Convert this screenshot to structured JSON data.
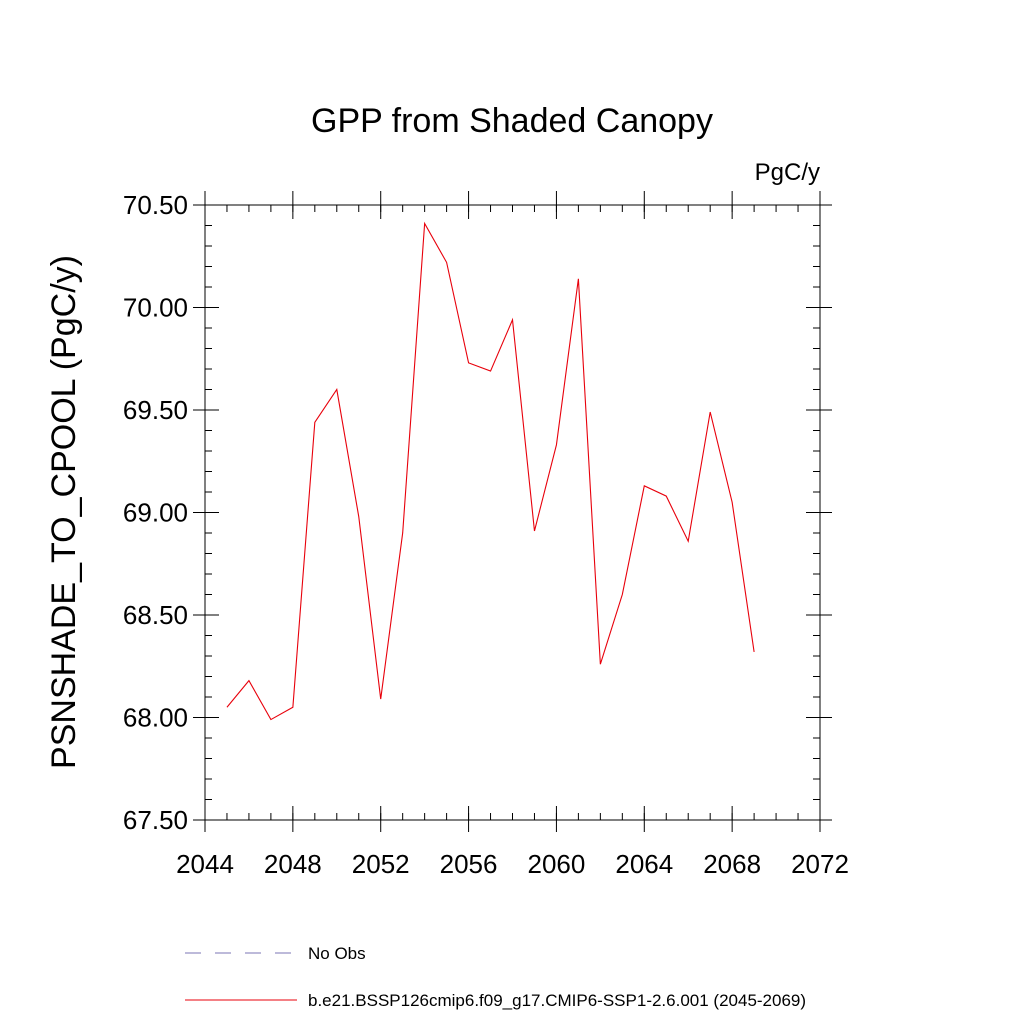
{
  "chart_data": {
    "type": "line",
    "title": "GPP from Shaded Canopy",
    "units_label": "PgC/y",
    "ylabel": "PSNSHADE_TO_CPOOL  (PgC/y)",
    "xlabel": "",
    "xlim": [
      2044,
      2072
    ],
    "ylim": [
      67.5,
      70.5
    ],
    "x_ticks": [
      2044,
      2048,
      2052,
      2056,
      2060,
      2064,
      2068,
      2072
    ],
    "x_tick_labels": [
      "2044",
      "2048",
      "2052",
      "2056",
      "2060",
      "2064",
      "2068",
      "2072"
    ],
    "y_ticks": [
      67.5,
      68.0,
      68.5,
      69.0,
      69.5,
      70.0,
      70.5
    ],
    "y_tick_labels": [
      "67.50",
      "68.00",
      "68.50",
      "69.00",
      "69.50",
      "70.00",
      "70.50"
    ],
    "x_minor_step": 1,
    "y_minor_step": 0.1,
    "grid": false,
    "legend_position": "bottom",
    "series": [
      {
        "name": "No Obs",
        "color": "#7b76b5",
        "dash": true,
        "x": [],
        "values": []
      },
      {
        "name": "b.e21.BSSP126cmip6.f09_g17.CMIP6-SSP1-2.6.001 (2045-2069)",
        "color": "#e8000b",
        "dash": false,
        "x": [
          2045,
          2046,
          2047,
          2048,
          2049,
          2050,
          2051,
          2052,
          2053,
          2054,
          2055,
          2056,
          2057,
          2058,
          2059,
          2060,
          2061,
          2062,
          2063,
          2064,
          2065,
          2066,
          2067,
          2068,
          2069
        ],
        "values": [
          68.05,
          68.18,
          67.99,
          68.05,
          69.44,
          69.6,
          68.98,
          68.09,
          68.9,
          70.41,
          70.22,
          69.73,
          69.69,
          69.94,
          68.91,
          69.33,
          70.14,
          68.26,
          68.6,
          69.13,
          69.08,
          68.86,
          69.49,
          69.05,
          68.32
        ]
      }
    ]
  }
}
